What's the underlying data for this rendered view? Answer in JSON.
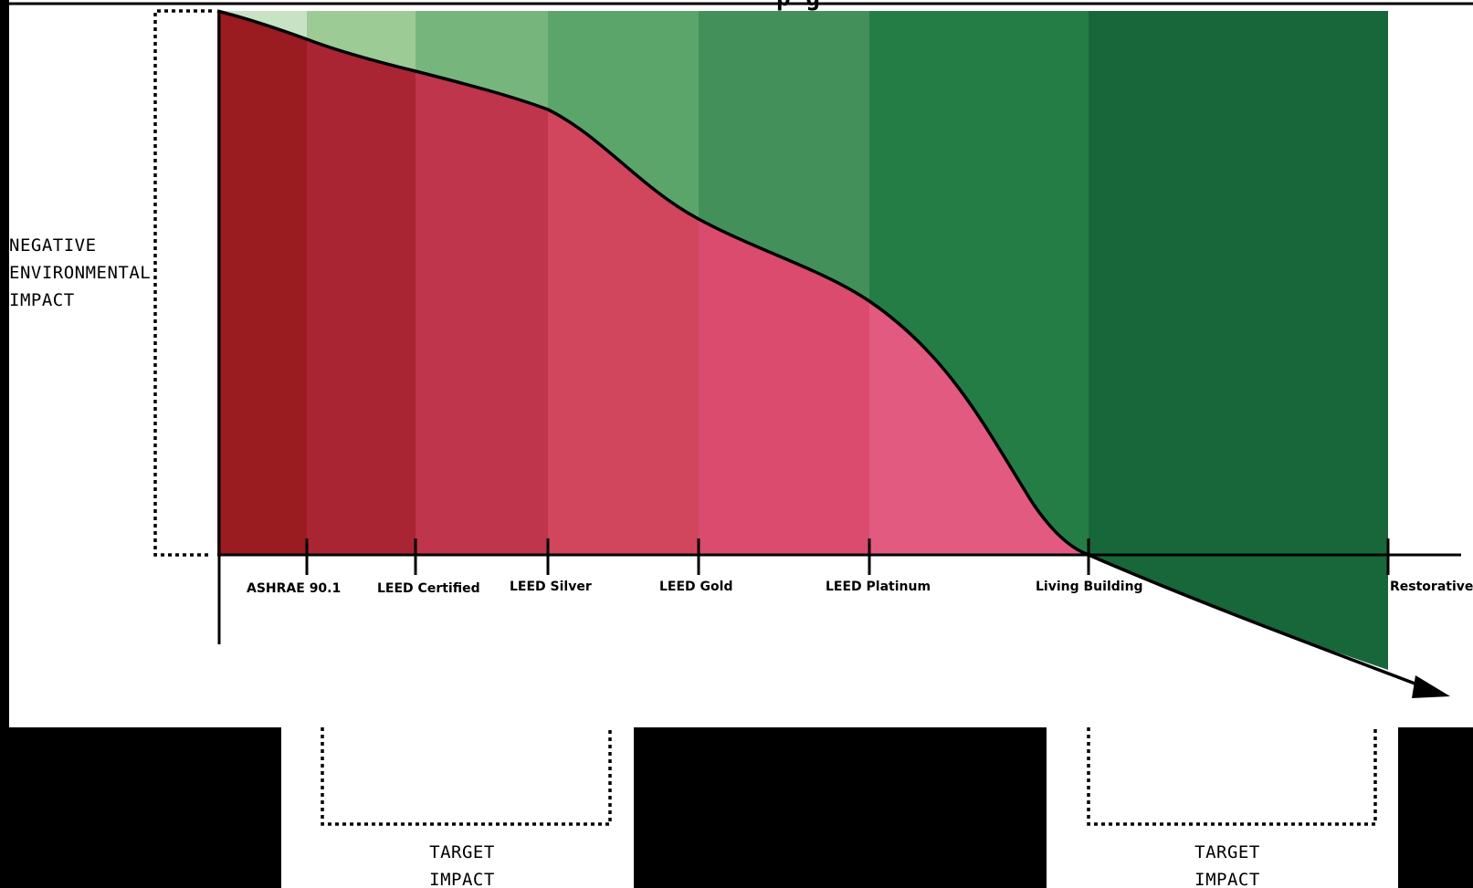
{
  "title_partial": "p            g",
  "y_axis_label": [
    "NEGATIVE",
    "ENVIRONMENTAL",
    "IMPACT"
  ],
  "levels": [
    {
      "key": "ashrae",
      "label": "ASHRAE 90.1"
    },
    {
      "key": "leed-certified",
      "label": "LEED Certified"
    },
    {
      "key": "leed-silver",
      "label": "LEED Silver"
    },
    {
      "key": "leed-gold",
      "label": "LEED Gold"
    },
    {
      "key": "leed-platinum",
      "label": "LEED Platinum"
    },
    {
      "key": "living-building",
      "label": "Living Building"
    },
    {
      "key": "restorative",
      "label": "Restorative"
    }
  ],
  "target_left": [
    "TARGET",
    "IMPACT"
  ],
  "target_right": [
    "TARGET",
    "IMPACT"
  ],
  "colors": {
    "background": "#000000",
    "panel": "#ffffff",
    "ink": "#000000",
    "red_bands": [
      "#9a1b20",
      "#aa2533",
      "#bf354b",
      "#d1465c",
      "#da4b6e",
      "#e35a80"
    ],
    "green_bands": [
      "#c7e3c3",
      "#9ccb96",
      "#76b67d",
      "#5ba56a",
      "#43905a",
      "#257d46",
      "#17673a"
    ]
  }
}
